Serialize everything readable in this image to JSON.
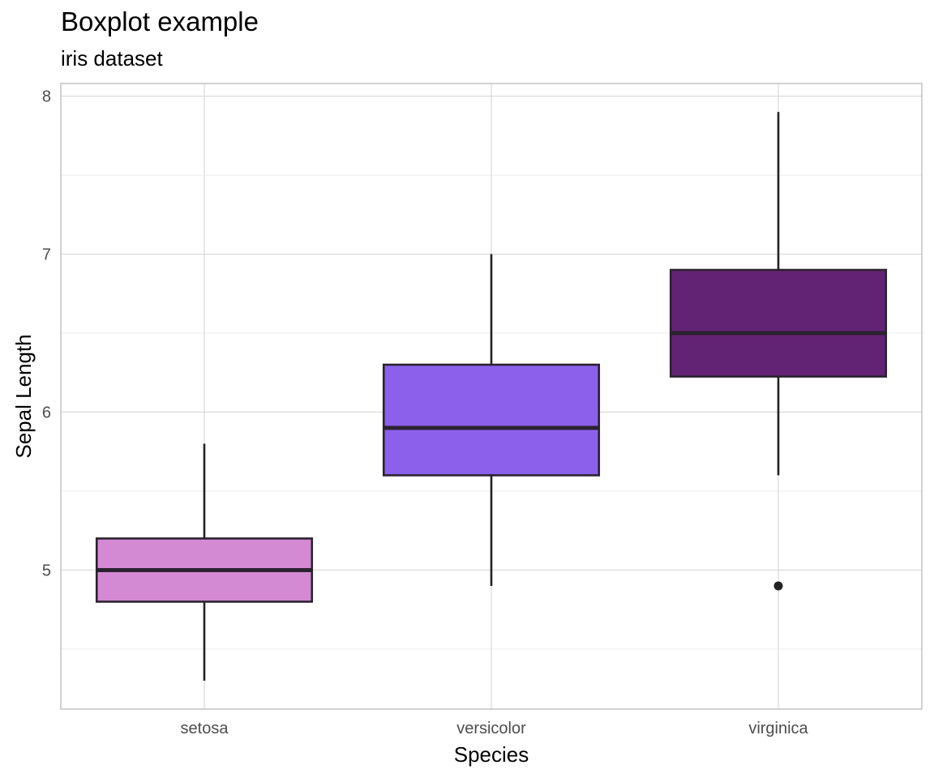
{
  "chart_data": {
    "type": "boxplot",
    "title": "Boxplot example",
    "subtitle": "iris dataset",
    "xlabel": "Species",
    "ylabel": "Sepal Length",
    "categories": [
      "setosa",
      "versicolor",
      "virginica"
    ],
    "boxes": [
      {
        "category": "setosa",
        "min": 4.3,
        "q1": 4.8,
        "median": 5.0,
        "q3": 5.2,
        "max": 5.8,
        "outliers": [],
        "color": "#D38AD3"
      },
      {
        "category": "versicolor",
        "min": 4.9,
        "q1": 5.6,
        "median": 5.9,
        "q3": 6.3,
        "max": 7.0,
        "outliers": [],
        "color": "#8C60EA"
      },
      {
        "category": "virginica",
        "min": 5.6,
        "q1": 6.225,
        "median": 6.5,
        "q3": 6.9,
        "max": 7.9,
        "outliers": [
          4.9
        ],
        "color": "#632374"
      }
    ],
    "ylim": [
      4.12,
      8.08
    ],
    "yticks": [
      5,
      6,
      7,
      8
    ],
    "grid": true,
    "legend": "none"
  }
}
